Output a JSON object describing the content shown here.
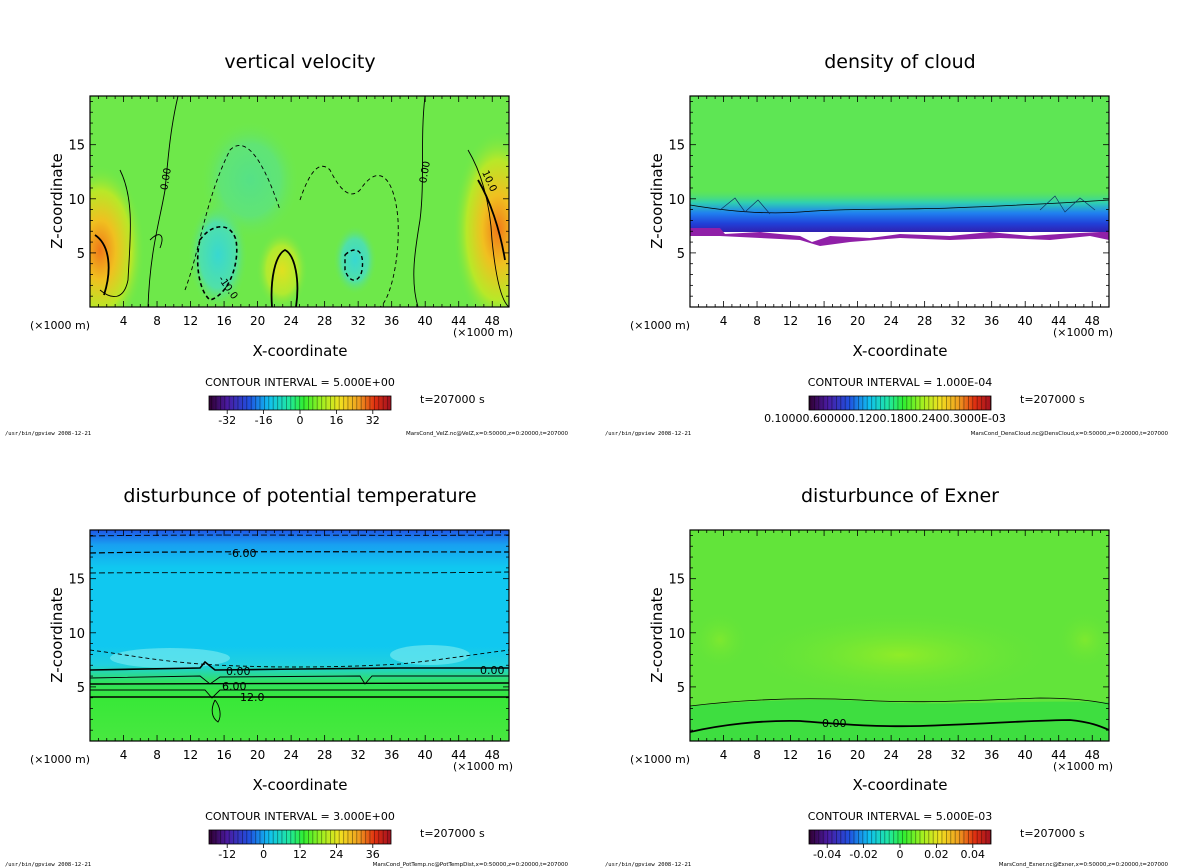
{
  "chart_data": [
    {
      "type": "heatmap",
      "title": "vertical velocity",
      "xlabel": "X-coordinate",
      "ylabel": "Z-coordinate",
      "x_unit": "(×1000 m)",
      "x_ticks": [
        4,
        8,
        12,
        16,
        20,
        24,
        28,
        32,
        36,
        40,
        44,
        48
      ],
      "y_ticks": [
        5,
        10,
        15
      ],
      "xlim": [
        0,
        50
      ],
      "ylim": [
        0,
        19.5
      ],
      "contour_interval": "CONTOUR INTERVAL = 5.000E+00",
      "time": "t=207000 s",
      "colorbar_ticks": [
        "-32",
        "-16",
        "0",
        "16",
        "32"
      ],
      "colorbar_range": [
        -40,
        40
      ],
      "contour_labels": [
        "0.00",
        "0.00",
        "10.0",
        "-10.0"
      ],
      "footer_left": "/usr/bin/gpview  2008-12-21",
      "footer_right": "MarsCond_VelZ.nc@VelZ,x=0:50000,z=0:20000,t=207000"
    },
    {
      "type": "heatmap",
      "title": "density of cloud",
      "xlabel": "X-coordinate",
      "ylabel": "Z-coordinate",
      "x_unit": "(×1000 m)",
      "x_ticks": [
        4,
        8,
        12,
        16,
        20,
        24,
        28,
        32,
        36,
        40,
        44,
        48
      ],
      "y_ticks": [
        5,
        10,
        15
      ],
      "xlim": [
        0,
        50
      ],
      "ylim": [
        0,
        19.5
      ],
      "contour_interval": "CONTOUR INTERVAL = 1.000E-04",
      "time": "t=207000 s",
      "colorbar_tick_text": "0.10000.600000.1200.1800.2400.3000E-03",
      "footer_left": "/usr/bin/gpview  2008-12-21",
      "footer_right": "MarsCond_DensCloud.nc@DensCloud,x=0:50000,z=0:20000,t=207000"
    },
    {
      "type": "heatmap",
      "title": "disturbunce of potential temperature",
      "xlabel": "X-coordinate",
      "ylabel": "Z-coordinate",
      "x_unit": "(×1000 m)",
      "x_ticks": [
        4,
        8,
        12,
        16,
        20,
        24,
        28,
        32,
        36,
        40,
        44,
        48
      ],
      "y_ticks": [
        5,
        10,
        15
      ],
      "xlim": [
        0,
        50
      ],
      "ylim": [
        0,
        19.5
      ],
      "contour_interval": "CONTOUR INTERVAL = 3.000E+00",
      "time": "t=207000 s",
      "colorbar_ticks": [
        "-12",
        "0",
        "12",
        "24",
        "36"
      ],
      "colorbar_range": [
        -18,
        42
      ],
      "contour_labels": [
        "-6.00",
        "0.00",
        "6.00",
        "12.0",
        "0.00"
      ],
      "footer_left": "/usr/bin/gpview  2008-12-21",
      "footer_right": "MarsCond_PotTemp.nc@PotTempDist,x=0:50000,z=0:20000,t=207000"
    },
    {
      "type": "heatmap",
      "title": "disturbunce of Exner",
      "xlabel": "X-coordinate",
      "ylabel": "Z-coordinate",
      "x_unit": "(×1000 m)",
      "x_ticks": [
        4,
        8,
        12,
        16,
        20,
        24,
        28,
        32,
        36,
        40,
        44,
        48
      ],
      "y_ticks": [
        5,
        10,
        15
      ],
      "xlim": [
        0,
        50
      ],
      "ylim": [
        0,
        19.5
      ],
      "contour_interval": "CONTOUR INTERVAL = 5.000E-03",
      "time": "t=207000 s",
      "colorbar_ticks": [
        "-0.04",
        "-0.02",
        "0",
        "0.02",
        "0.04"
      ],
      "colorbar_range": [
        -0.05,
        0.05
      ],
      "contour_labels": [
        "0.00"
      ],
      "footer_left": "/usr/bin/gpview  2008-12-21",
      "footer_right": "MarsCond_Exner.nc@Exner,x=0:50000,z=0:20000,t=207000"
    }
  ]
}
